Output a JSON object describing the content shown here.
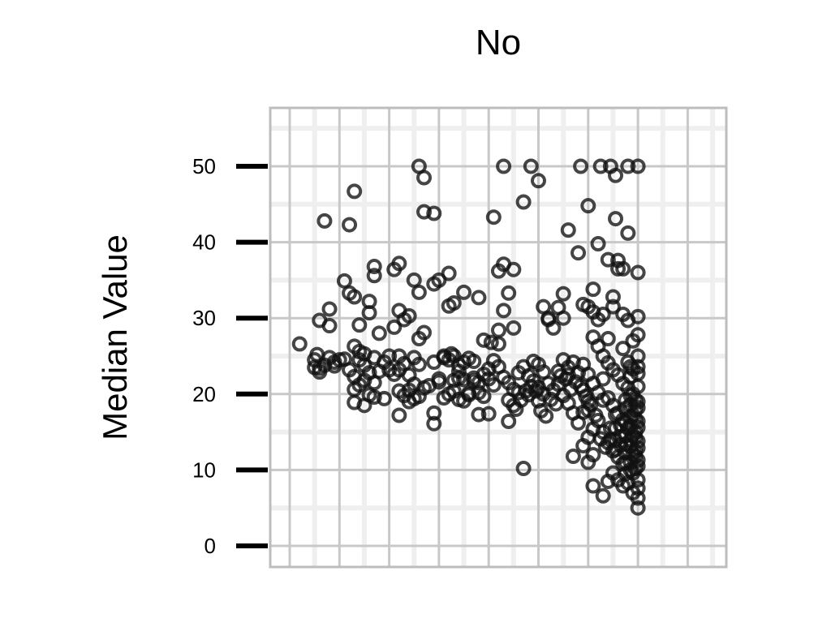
{
  "chart_data": {
    "type": "scatter",
    "title": "No",
    "ylabel": "Median Value",
    "xlabel": "",
    "ylim": [
      0,
      55
    ],
    "yticks": [
      0,
      10,
      20,
      30,
      40,
      50
    ],
    "ytick_labels": [
      "0",
      "10",
      "20",
      "30",
      "40",
      "50"
    ],
    "xlim": [
      -0.4,
      8.6
    ],
    "grid": true,
    "legend": "none",
    "marker": "hollow-circle",
    "colors": {
      "point": "#111111",
      "grid_major": "#c8c8c8",
      "grid_minor": "#efefef",
      "frame": "#bdbdbd",
      "tick": "#000000"
    },
    "points": [
      [
        0.2,
        26.6
      ],
      [
        0.5,
        23.5
      ],
      [
        0.5,
        24.5
      ],
      [
        0.6,
        22.9
      ],
      [
        0.55,
        25.2
      ],
      [
        0.7,
        23.8
      ],
      [
        0.8,
        24.8
      ],
      [
        0.9,
        23.7
      ],
      [
        0.6,
        29.7
      ],
      [
        0.8,
        31.2
      ],
      [
        0.8,
        29.0
      ],
      [
        0.7,
        42.8
      ],
      [
        1.2,
        42.3
      ],
      [
        1.3,
        46.7
      ],
      [
        1.1,
        34.9
      ],
      [
        1.2,
        33.3
      ],
      [
        1.3,
        32.8
      ],
      [
        1.0,
        24.5
      ],
      [
        1.3,
        26.3
      ],
      [
        1.4,
        24.5
      ],
      [
        1.2,
        23.2
      ],
      [
        1.3,
        22.3
      ],
      [
        1.4,
        21.2
      ],
      [
        1.3,
        20.6
      ],
      [
        1.3,
        18.9
      ],
      [
        1.5,
        18.5
      ],
      [
        1.4,
        29.1
      ],
      [
        1.6,
        32.2
      ],
      [
        1.6,
        30.7
      ],
      [
        1.7,
        36.8
      ],
      [
        1.7,
        35.6
      ],
      [
        1.8,
        28.0
      ],
      [
        1.9,
        19.4
      ],
      [
        1.6,
        19.9
      ],
      [
        1.7,
        19.6
      ],
      [
        1.5,
        21.8
      ],
      [
        1.5,
        23.8
      ],
      [
        1.7,
        24.8
      ],
      [
        1.4,
        25.6
      ],
      [
        2.1,
        36.4
      ],
      [
        2.2,
        37.2
      ],
      [
        2.1,
        28.8
      ],
      [
        2.2,
        31.0
      ],
      [
        2.4,
        30.3
      ],
      [
        2.3,
        29.8
      ],
      [
        2.2,
        25.0
      ],
      [
        2.3,
        24.0
      ],
      [
        2.2,
        23.2
      ],
      [
        2.4,
        22.5
      ],
      [
        2.5,
        21.3
      ],
      [
        2.4,
        20.5
      ],
      [
        2.5,
        19.4
      ],
      [
        2.6,
        19.7
      ],
      [
        2.7,
        20.8
      ],
      [
        2.5,
        24.8
      ],
      [
        2.6,
        23.9
      ],
      [
        2.6,
        27.3
      ],
      [
        2.7,
        28.1
      ],
      [
        2.5,
        35.0
      ],
      [
        2.6,
        33.4
      ],
      [
        2.7,
        44.0
      ],
      [
        2.9,
        43.8
      ],
      [
        2.6,
        50.0
      ],
      [
        2.7,
        48.5
      ],
      [
        2.2,
        17.2
      ],
      [
        2.9,
        17.5
      ],
      [
        2.9,
        16.1
      ],
      [
        2.8,
        21.1
      ],
      [
        3.0,
        21.6
      ],
      [
        3.0,
        22.0
      ],
      [
        2.9,
        24.2
      ],
      [
        3.1,
        24.8
      ],
      [
        2.9,
        34.5
      ],
      [
        3.0,
        35.0
      ],
      [
        3.2,
        35.9
      ],
      [
        3.2,
        31.6
      ],
      [
        3.3,
        32.0
      ],
      [
        3.5,
        33.4
      ],
      [
        3.8,
        32.7
      ],
      [
        3.1,
        25.0
      ],
      [
        3.2,
        24.5
      ],
      [
        3.3,
        25.0
      ],
      [
        3.4,
        23.0
      ],
      [
        3.5,
        21.9
      ],
      [
        3.3,
        20.4
      ],
      [
        3.4,
        19.3
      ],
      [
        3.5,
        19.1
      ],
      [
        3.6,
        20.1
      ],
      [
        3.7,
        21.7
      ],
      [
        3.4,
        23.8
      ],
      [
        3.6,
        24.7
      ],
      [
        3.7,
        24.3
      ],
      [
        3.8,
        17.3
      ],
      [
        4.0,
        17.4
      ],
      [
        3.8,
        21.5
      ],
      [
        3.9,
        22.6
      ],
      [
        4.0,
        23.3
      ],
      [
        4.1,
        21.2
      ],
      [
        3.9,
        27.1
      ],
      [
        4.2,
        26.6
      ],
      [
        4.2,
        28.4
      ],
      [
        4.5,
        28.7
      ],
      [
        4.2,
        36.2
      ],
      [
        4.3,
        37.1
      ],
      [
        4.5,
        36.4
      ],
      [
        4.4,
        33.3
      ],
      [
        4.3,
        31.0
      ],
      [
        4.1,
        43.3
      ],
      [
        4.3,
        50.0
      ],
      [
        4.2,
        23.6
      ],
      [
        4.3,
        22.2
      ],
      [
        4.4,
        21.5
      ],
      [
        4.5,
        20.6
      ],
      [
        4.6,
        20.2
      ],
      [
        4.4,
        19.2
      ],
      [
        4.4,
        16.4
      ],
      [
        4.5,
        18.5
      ],
      [
        4.6,
        22.8
      ],
      [
        4.7,
        23.6
      ],
      [
        4.8,
        22.4
      ],
      [
        4.9,
        21.7
      ],
      [
        5.0,
        20.9
      ],
      [
        5.1,
        20.0
      ],
      [
        5.1,
        22.9
      ],
      [
        5.0,
        23.9
      ],
      [
        4.9,
        24.3
      ],
      [
        4.8,
        19.9
      ],
      [
        5.0,
        19.1
      ],
      [
        5.2,
        21.4
      ],
      [
        5.1,
        31.5
      ],
      [
        5.2,
        30.0
      ],
      [
        5.3,
        28.7
      ],
      [
        5.2,
        29.8
      ],
      [
        4.7,
        45.3
      ],
      [
        5.0,
        48.1
      ],
      [
        4.85,
        50.0
      ],
      [
        4.7,
        10.2
      ],
      [
        5.3,
        20.5
      ],
      [
        5.4,
        23.0
      ],
      [
        5.5,
        24.5
      ],
      [
        5.6,
        22.5
      ],
      [
        5.4,
        21.3
      ],
      [
        5.5,
        19.8
      ],
      [
        5.6,
        18.8
      ],
      [
        5.7,
        17.5
      ],
      [
        5.8,
        16.2
      ],
      [
        5.9,
        17.6
      ],
      [
        6.0,
        19.0
      ],
      [
        5.6,
        23.5
      ],
      [
        5.7,
        24.2
      ],
      [
        5.8,
        22.8
      ],
      [
        5.5,
        30.0
      ],
      [
        5.4,
        31.4
      ],
      [
        5.5,
        33.2
      ],
      [
        5.6,
        41.6
      ],
      [
        5.8,
        38.6
      ],
      [
        5.9,
        31.8
      ],
      [
        6.0,
        31.5
      ],
      [
        5.7,
        11.8
      ],
      [
        6.1,
        30.8
      ],
      [
        6.2,
        29.8
      ],
      [
        6.1,
        27.5
      ],
      [
        5.9,
        23.9
      ],
      [
        6.0,
        22.6
      ],
      [
        6.1,
        21.4
      ],
      [
        6.2,
        20.2
      ],
      [
        6.3,
        19.2
      ],
      [
        6.0,
        44.8
      ],
      [
        5.85,
        50.0
      ],
      [
        6.25,
        50.0
      ],
      [
        6.45,
        50.0
      ],
      [
        6.8,
        50.0
      ],
      [
        6.55,
        48.8
      ],
      [
        6.2,
        39.8
      ],
      [
        6.4,
        37.7
      ],
      [
        6.55,
        43.1
      ],
      [
        6.6,
        37.6
      ],
      [
        6.7,
        36.5
      ],
      [
        6.8,
        41.2
      ],
      [
        6.6,
        36.5
      ],
      [
        6.5,
        32.8
      ],
      [
        6.3,
        30.5
      ],
      [
        6.1,
        33.8
      ],
      [
        6.2,
        26.3
      ],
      [
        6.3,
        25.0
      ],
      [
        6.4,
        24.1
      ],
      [
        6.5,
        23.2
      ],
      [
        6.6,
        22.5
      ],
      [
        6.7,
        21.4
      ],
      [
        6.8,
        20.8
      ],
      [
        6.4,
        19.5
      ],
      [
        6.5,
        18.5
      ],
      [
        6.6,
        17.5
      ],
      [
        6.7,
        16.6
      ],
      [
        6.8,
        15.5
      ],
      [
        6.3,
        15.0
      ],
      [
        6.4,
        13.6
      ],
      [
        6.5,
        12.5
      ],
      [
        6.6,
        11.7
      ],
      [
        6.7,
        10.8
      ],
      [
        6.5,
        9.6
      ],
      [
        6.6,
        8.7
      ],
      [
        6.4,
        8.5
      ],
      [
        6.7,
        7.9
      ],
      [
        6.0,
        11.0
      ],
      [
        6.1,
        12.0
      ],
      [
        5.9,
        13.2
      ],
      [
        6.0,
        14.3
      ],
      [
        6.1,
        15.4
      ],
      [
        6.2,
        16.5
      ],
      [
        6.0,
        17.9
      ],
      [
        5.9,
        20.5
      ],
      [
        6.3,
        22.0
      ],
      [
        6.4,
        27.3
      ],
      [
        6.5,
        31.5
      ],
      [
        6.7,
        30.5
      ],
      [
        6.8,
        29.7
      ],
      [
        6.9,
        27.0
      ],
      [
        6.7,
        26.0
      ],
      [
        6.8,
        24.2
      ],
      [
        6.9,
        23.3
      ],
      [
        7.0,
        22.7
      ],
      [
        7.0,
        21.0
      ],
      [
        6.9,
        20.0
      ],
      [
        7.0,
        19.0
      ],
      [
        7.0,
        18.2
      ],
      [
        6.9,
        17.2
      ],
      [
        7.0,
        16.4
      ],
      [
        7.0,
        15.6
      ],
      [
        6.9,
        14.6
      ],
      [
        7.0,
        13.8
      ],
      [
        7.0,
        12.9
      ],
      [
        6.9,
        12.1
      ],
      [
        7.0,
        11.3
      ],
      [
        7.0,
        10.5
      ],
      [
        6.9,
        9.6
      ],
      [
        7.0,
        8.7
      ],
      [
        6.8,
        8.3
      ],
      [
        7.0,
        7.6
      ],
      [
        6.9,
        7.0
      ],
      [
        7.0,
        6.3
      ],
      [
        7.0,
        5.0
      ],
      [
        6.3,
        6.6
      ],
      [
        6.1,
        7.9
      ],
      [
        7.0,
        50.0
      ],
      [
        7.0,
        36.0
      ],
      [
        7.0,
        30.2
      ],
      [
        7.0,
        27.8
      ],
      [
        7.0,
        25.0
      ],
      [
        7.0,
        23.6
      ],
      [
        6.85,
        23.6
      ],
      [
        6.85,
        22.3
      ],
      [
        6.85,
        19.8
      ],
      [
        6.85,
        18.6
      ],
      [
        6.85,
        17.0
      ],
      [
        6.85,
        15.8
      ],
      [
        6.85,
        14.0
      ],
      [
        6.85,
        13.1
      ],
      [
        6.85,
        11.0
      ],
      [
        6.85,
        10.0
      ],
      [
        6.75,
        9.5
      ],
      [
        6.95,
        19.2
      ],
      [
        6.95,
        17.9
      ],
      [
        6.95,
        16.7
      ],
      [
        6.95,
        15.0
      ],
      [
        6.95,
        14.2
      ],
      [
        6.95,
        12.5
      ],
      [
        6.95,
        11.8
      ],
      [
        6.95,
        10.2
      ],
      [
        6.75,
        14.5
      ],
      [
        6.75,
        13.4
      ],
      [
        6.75,
        12.3
      ],
      [
        6.75,
        11.0
      ],
      [
        6.75,
        16.3
      ],
      [
        6.75,
        18.1
      ],
      [
        6.75,
        19.2
      ],
      [
        6.65,
        15.9
      ],
      [
        6.65,
        14.4
      ],
      [
        6.65,
        13.3
      ],
      [
        6.55,
        12.7
      ],
      [
        6.55,
        13.9
      ],
      [
        6.55,
        15.5
      ],
      [
        6.55,
        17.3
      ],
      [
        6.45,
        15.5
      ],
      [
        6.45,
        14.0
      ],
      [
        6.35,
        13.0
      ],
      [
        6.25,
        14.1
      ],
      [
        6.15,
        17.2
      ],
      [
        6.05,
        18.6
      ],
      [
        5.95,
        19.7
      ],
      [
        5.85,
        21.0
      ],
      [
        5.75,
        21.6
      ],
      [
        5.65,
        20.6
      ],
      [
        5.55,
        22.0
      ],
      [
        5.45,
        22.4
      ],
      [
        5.35,
        18.7
      ],
      [
        5.25,
        19.3
      ],
      [
        5.15,
        17.1
      ],
      [
        5.05,
        17.8
      ],
      [
        4.95,
        20.4
      ],
      [
        4.85,
        21.0
      ],
      [
        4.75,
        20.4
      ],
      [
        4.65,
        19.2
      ],
      [
        4.55,
        18.0
      ],
      [
        3.1,
        19.5
      ],
      [
        3.2,
        20.0
      ],
      [
        3.3,
        21.8
      ],
      [
        3.4,
        22.1
      ],
      [
        3.5,
        24.2
      ],
      [
        3.6,
        19.9
      ],
      [
        2.0,
        23.2
      ],
      [
        2.1,
        22.6
      ],
      [
        2.2,
        20.4
      ],
      [
        2.3,
        19.8
      ],
      [
        2.4,
        19.0
      ],
      [
        1.8,
        23.0
      ],
      [
        1.9,
        24.2
      ],
      [
        2.0,
        25.0
      ],
      [
        1.6,
        22.8
      ],
      [
        1.7,
        21.5
      ],
      [
        1.5,
        25.3
      ],
      [
        1.1,
        24.6
      ],
      [
        0.9,
        24.2
      ],
      [
        0.6,
        23.4
      ],
      [
        3.7,
        22.1
      ],
      [
        3.8,
        20.2
      ],
      [
        3.9,
        19.7
      ],
      [
        4.0,
        22.0
      ],
      [
        4.1,
        24.4
      ],
      [
        4.05,
        26.8
      ],
      [
        3.25,
        25.3
      ]
    ]
  }
}
